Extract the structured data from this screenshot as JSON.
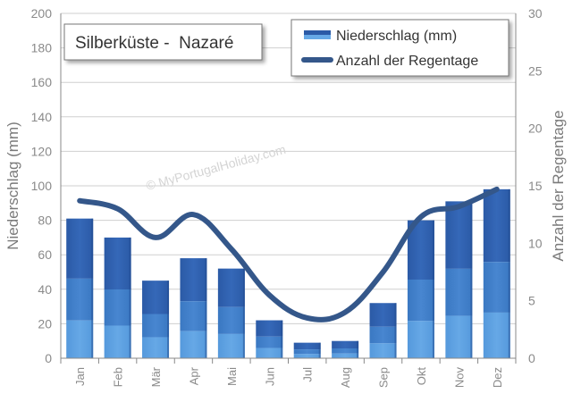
{
  "chart_data": {
    "type": "bar+line",
    "title": "Silberküste -  Nazaré",
    "watermark": "© MyPortugalHoliday.com",
    "categories": [
      "Jan",
      "Feb",
      "Mär",
      "Apr",
      "Mai",
      "Jun",
      "Jul",
      "Aug",
      "Sep",
      "Okt",
      "Nov",
      "Dez"
    ],
    "series": [
      {
        "name": "Niederschlag (mm)",
        "type": "bar",
        "axis": "left",
        "values": [
          81,
          70,
          45,
          58,
          52,
          22,
          9,
          10,
          32,
          80,
          91,
          98
        ]
      },
      {
        "name": "Anzahl der Regentage",
        "type": "line",
        "axis": "right",
        "values": [
          13.7,
          13,
          10.5,
          12.5,
          9.5,
          5.5,
          3.5,
          4,
          7.5,
          12.3,
          13.2,
          14.7
        ]
      }
    ],
    "ylabel_left": "Niederschlag (mm)",
    "ylabel_right": "Anzahl der Regentage",
    "ylim_left": [
      0,
      200
    ],
    "ylim_right": [
      0,
      30
    ],
    "yticks_left": [
      0,
      20,
      40,
      60,
      80,
      100,
      120,
      140,
      160,
      180,
      200
    ],
    "yticks_right": [
      0,
      5,
      10,
      15,
      20,
      25,
      30
    ],
    "grid": true,
    "legend_position": "top-right",
    "colors": {
      "bar_top": "#2f62b0",
      "bar_mid": "#3f80c8",
      "bar_low": "#5ca2e0",
      "line": "#34578a",
      "grid": "#cfcfcf",
      "axis": "#888888"
    }
  }
}
